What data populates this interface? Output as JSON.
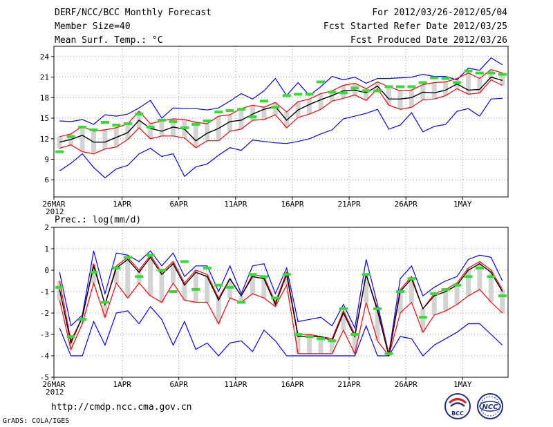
{
  "header": {
    "title": "DERF/NCC/BCC Monthly Forecast",
    "member_size": "Member Size=40",
    "fcst_range": "For 2012/03/26-2012/05/04",
    "fcst_started": "Fcst Started Refer Date 2012/03/25",
    "fcst_produced": "Fcst Produced Date 2012/03/26"
  },
  "footer": {
    "url": "http://cmdp.ncc.cma.gov.cn",
    "grads": "GrADS: COLA/IGES",
    "logo_bcc": "BCC",
    "logo_ncc": "NCC"
  },
  "colors": {
    "ensemble_mean": "#000000",
    "std_band": "#ff0000",
    "min_max": "#0000ff",
    "spread_box": "#d3d3d3",
    "observation": "#33dd33",
    "grid": "#999999"
  },
  "chart_data": [
    {
      "type": "line",
      "title": "Mean Surf. Temp.: °C",
      "x_tick_labels": [
        "26MAR",
        "1APR",
        "6APR",
        "11APR",
        "16APR",
        "21APR",
        "26APR",
        "1MAY"
      ],
      "x_tick_days": [
        1,
        7,
        12,
        17,
        22,
        27,
        32,
        37
      ],
      "year_label": "2012",
      "xlim": [
        1,
        41
      ],
      "ylim": [
        3.5,
        25.5
      ],
      "yticks": [
        6,
        9,
        12,
        15,
        18,
        21,
        24
      ],
      "days": 40,
      "series": [
        {
          "name": "max",
          "values": [
            14.6,
            14.5,
            14.8,
            14.1,
            15.5,
            15.3,
            15.6,
            16.5,
            17.6,
            15.0,
            16.5,
            16.4,
            16.4,
            16.2,
            16.5,
            17.5,
            18.6,
            17.8,
            19.0,
            20.8,
            18.3,
            20.2,
            18.3,
            19.6,
            21.1,
            20.6,
            21.0,
            20.1,
            20.8,
            20.8,
            20.9,
            21.0,
            21.4,
            21.1,
            21.1,
            20.6,
            22.3,
            22.0,
            23.8,
            22.8
          ]
        },
        {
          "name": "mean_plus_std",
          "values": [
            12.3,
            12.7,
            13.8,
            13.1,
            13.3,
            13.6,
            14.2,
            16.0,
            14.2,
            14.6,
            14.9,
            14.8,
            14.4,
            14.2,
            15.3,
            15.5,
            16.4,
            16.9,
            16.6,
            17.3,
            15.9,
            17.4,
            17.8,
            18.6,
            19.0,
            19.8,
            20.1,
            19.3,
            20.3,
            19.6,
            19.0,
            19.1,
            19.9,
            20.2,
            20.3,
            20.8,
            21.6,
            20.8,
            22.1,
            21.6
          ]
        },
        {
          "name": "mean",
          "values": [
            11.5,
            11.9,
            12.5,
            11.5,
            11.5,
            12.2,
            12.9,
            14.7,
            13.5,
            13.1,
            13.7,
            13.4,
            11.7,
            12.8,
            13.5,
            14.5,
            14.7,
            15.6,
            16.3,
            16.7,
            14.7,
            16.2,
            17.0,
            17.7,
            18.3,
            19.0,
            19.1,
            18.7,
            19.7,
            17.8,
            17.8,
            18.0,
            18.8,
            18.7,
            19.1,
            20.0,
            19.1,
            19.2,
            21.0,
            20.5
          ]
        },
        {
          "name": "mean_minus_std",
          "values": [
            10.6,
            11.1,
            10.1,
            9.8,
            10.5,
            10.8,
            11.9,
            13.6,
            12.0,
            12.4,
            12.4,
            12.1,
            10.7,
            11.7,
            11.7,
            13.1,
            13.4,
            14.7,
            14.8,
            15.5,
            13.6,
            15.1,
            15.6,
            16.3,
            17.5,
            17.9,
            18.4,
            17.6,
            19.3,
            16.9,
            16.3,
            16.6,
            17.7,
            17.8,
            18.3,
            19.3,
            18.5,
            18.7,
            20.6,
            19.8
          ]
        },
        {
          "name": "min",
          "values": [
            7.3,
            8.4,
            9.8,
            7.8,
            6.3,
            7.6,
            8.1,
            9.8,
            10.6,
            9.4,
            9.8,
            6.5,
            7.9,
            8.3,
            9.6,
            10.7,
            10.3,
            11.8,
            11.6,
            11.4,
            11.3,
            11.6,
            12.0,
            12.7,
            13.3,
            14.9,
            15.3,
            15.7,
            16.3,
            13.4,
            14.0,
            15.8,
            13.0,
            13.8,
            14.1,
            16.0,
            16.4,
            15.3,
            17.8,
            17.9
          ]
        },
        {
          "name": "observation",
          "values": [
            10.1,
            12.3,
            13.7,
            13.3,
            14.4,
            14.0,
            14.2,
            15.6,
            13.7,
            14.7,
            14.5,
            13.6,
            14.1,
            14.6,
            15.9,
            16.1,
            16.3,
            15.2,
            17.5,
            16.6,
            18.3,
            18.5,
            18.5,
            20.3,
            18.8,
            18.7,
            19.4,
            19.0,
            19.0,
            19.6,
            19.6,
            19.6,
            20.2,
            20.9,
            20.8,
            20.2,
            21.9,
            21.6,
            21.6,
            21.4
          ]
        }
      ]
    },
    {
      "type": "line",
      "title": "Prec.: log(mm/d)",
      "x_tick_labels": [
        "26MAR",
        "1APR",
        "6APR",
        "11APR",
        "16APR",
        "21APR",
        "26APR",
        "1MAY"
      ],
      "x_tick_days": [
        1,
        7,
        12,
        17,
        22,
        27,
        32,
        37
      ],
      "year_label": "2012",
      "xlim": [
        1,
        41
      ],
      "ylim": [
        -5,
        2
      ],
      "yticks": [
        -5,
        -4,
        -3,
        -2,
        -1,
        0,
        1,
        2
      ],
      "days": 40,
      "series": [
        {
          "name": "max",
          "values": [
            -0.1,
            -2.6,
            -2.1,
            0.9,
            -1.1,
            0.8,
            0.7,
            0.4,
            0.9,
            0.2,
            0.8,
            -0.3,
            0.2,
            0.2,
            -1.0,
            0.2,
            -1.1,
            0.2,
            0.3,
            -1.1,
            0.1,
            -2.4,
            -2.3,
            -2.2,
            -2.6,
            -1.6,
            -2.7,
            0.5,
            -1.6,
            -3.9,
            -0.4,
            0.2,
            -1.2,
            -0.8,
            -0.5,
            -0.3,
            0.5,
            0.7,
            0.6,
            -0.5
          ]
        },
        {
          "name": "mean_plus_std",
          "values": [
            -0.5,
            -3.3,
            -2.2,
            0.3,
            -1.6,
            0.2,
            0.6,
            0.0,
            0.7,
            -0.1,
            0.4,
            -0.6,
            0.0,
            -0.2,
            -1.3,
            -0.4,
            -1.2,
            -0.2,
            -0.3,
            -1.5,
            -0.1,
            -3.0,
            -3.0,
            -3.1,
            -3.2,
            -1.9,
            -3.0,
            -0.2,
            -1.8,
            -3.9,
            -0.9,
            -0.3,
            -1.8,
            -1.1,
            -0.9,
            -0.6,
            0.1,
            0.4,
            0.0,
            -0.9
          ]
        },
        {
          "name": "mean",
          "values": [
            -0.9,
            -3.4,
            -2.2,
            0.2,
            -1.6,
            0.1,
            0.5,
            -0.1,
            0.6,
            -0.2,
            0.3,
            -0.7,
            -0.1,
            -0.3,
            -1.4,
            -0.4,
            -1.2,
            -0.3,
            -0.4,
            -1.6,
            -0.2,
            -3.1,
            -3.1,
            -3.1,
            -3.3,
            -2.0,
            -3.1,
            -0.2,
            -1.9,
            -4.0,
            -1.0,
            -0.4,
            -1.8,
            -1.2,
            -1.0,
            -0.7,
            0.0,
            0.3,
            -0.1,
            -1.0
          ]
        },
        {
          "name": "mean_minus_std",
          "values": [
            -1.4,
            -3.7,
            -2.5,
            -0.6,
            -2.2,
            -0.6,
            -1.3,
            -0.6,
            -1.2,
            -1.5,
            -0.6,
            -1.4,
            -1.5,
            -1.5,
            -2.5,
            -1.3,
            -1.5,
            -1.1,
            -1.3,
            -1.7,
            -0.7,
            -3.9,
            -3.9,
            -3.9,
            -3.9,
            -2.8,
            -3.9,
            -1.5,
            -3.3,
            -4.0,
            -2.0,
            -1.5,
            -2.9,
            -2.1,
            -1.9,
            -1.6,
            -1.2,
            -0.9,
            -1.5,
            -2.0
          ]
        },
        {
          "name": "min",
          "values": [
            -2.7,
            -4.0,
            -4.0,
            -2.4,
            -3.5,
            -2.0,
            -1.9,
            -2.5,
            -1.7,
            -2.3,
            -3.5,
            -2.4,
            -3.7,
            -3.4,
            -4.0,
            -3.4,
            -3.3,
            -3.8,
            -2.8,
            -3.3,
            -4.0,
            -4.0,
            -4.0,
            -4.0,
            -4.0,
            -4.0,
            -4.0,
            -2.6,
            -4.0,
            -4.0,
            -3.1,
            -3.2,
            -4.0,
            -3.5,
            -3.2,
            -2.9,
            -2.5,
            -2.5,
            -3.0,
            -3.5
          ]
        },
        {
          "name": "observation",
          "values": [
            -0.8,
            -3.1,
            -2.3,
            -0.1,
            -1.5,
            0.1,
            0.6,
            -0.3,
            0.7,
            0.0,
            -1.0,
            0.4,
            -0.9,
            0.1,
            -0.7,
            -0.8,
            -1.5,
            -0.2,
            -0.3,
            -1.3,
            -0.2,
            -3.0,
            -3.1,
            -3.2,
            -3.3,
            -1.8,
            -3.0,
            -0.2,
            -1.8,
            -3.9,
            -1.0,
            -0.4,
            -2.2,
            -1.1,
            -0.9,
            -0.7,
            -0.3,
            0.1,
            -0.3,
            -1.2
          ]
        }
      ]
    }
  ]
}
